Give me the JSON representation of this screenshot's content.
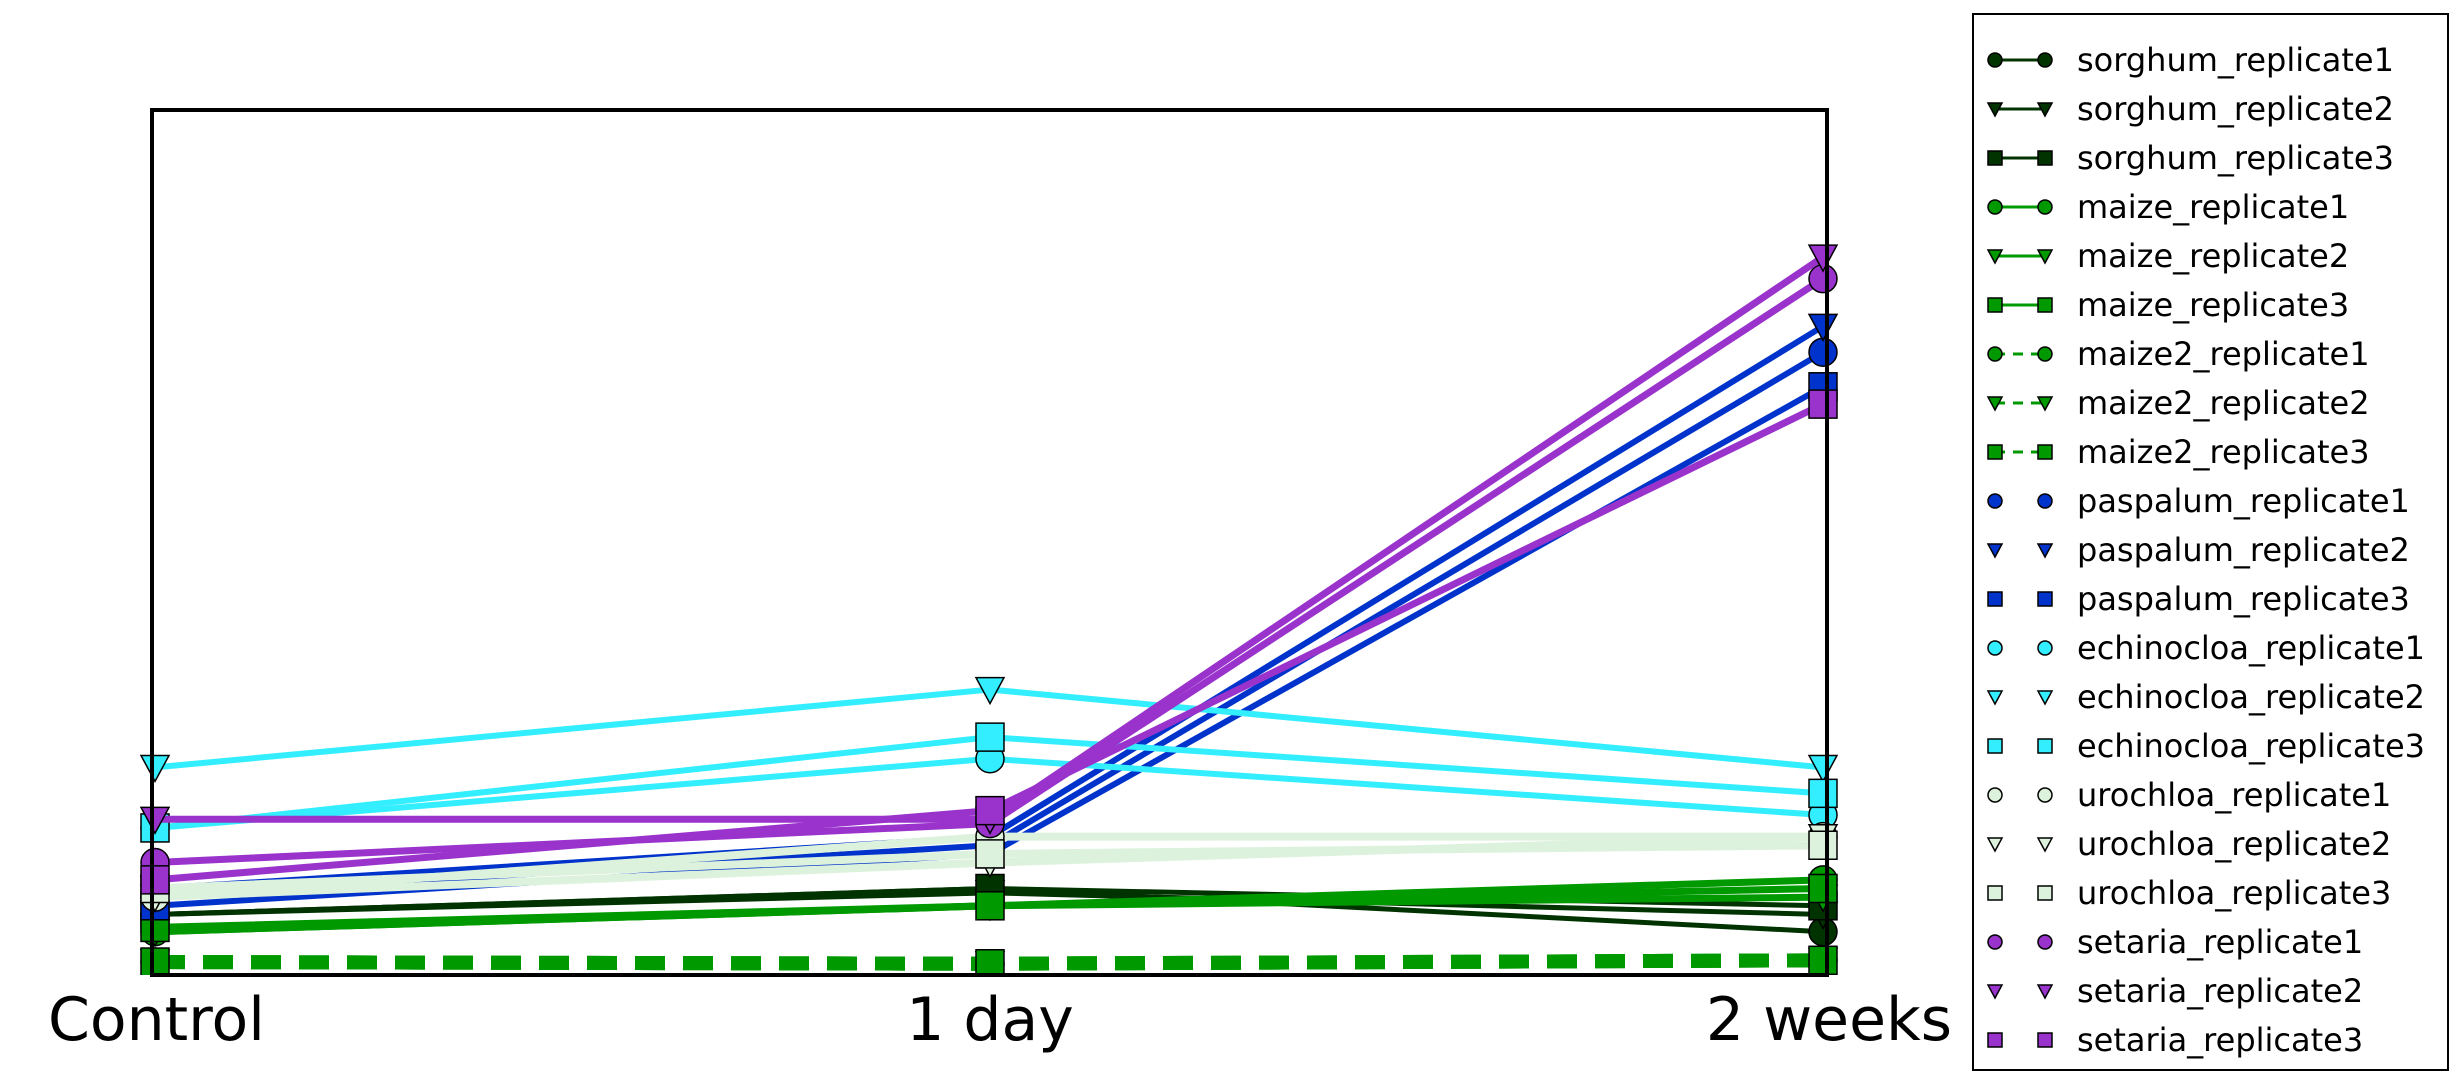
{
  "chart_data": {
    "type": "line",
    "title": "",
    "xlabel": "",
    "ylabel": "",
    "categories": [
      "Control",
      "1 day",
      "2 weeks"
    ],
    "ylim": [
      0,
      100
    ],
    "grid": false,
    "legend_placement": "right, outside plot",
    "series": [
      {
        "name": "sorghum_replicate1",
        "color": "#003300",
        "marker": "circle",
        "linestyle": "solid",
        "linewidth": 5,
        "values": [
          7,
          10,
          5
        ]
      },
      {
        "name": "sorghum_replicate2",
        "color": "#003300",
        "marker": "triangle-down",
        "linestyle": "solid",
        "linewidth": 5,
        "values": [
          7,
          9.5,
          7
        ]
      },
      {
        "name": "sorghum_replicate3",
        "color": "#003300",
        "marker": "square",
        "linestyle": "solid",
        "linewidth": 5,
        "values": [
          7,
          10,
          8
        ]
      },
      {
        "name": "maize_replicate1",
        "color": "#009900",
        "marker": "circle",
        "linestyle": "solid",
        "linewidth": 7,
        "values": [
          5,
          8,
          11
        ]
      },
      {
        "name": "maize_replicate2",
        "color": "#009900",
        "marker": "triangle-down",
        "linestyle": "solid",
        "linewidth": 7,
        "values": [
          5,
          8,
          9
        ]
      },
      {
        "name": "maize_replicate3",
        "color": "#009900",
        "marker": "square",
        "linestyle": "solid",
        "linewidth": 7,
        "values": [
          5.5,
          8,
          10
        ]
      },
      {
        "name": "maize2_replicate1",
        "color": "#009900",
        "marker": "circle",
        "linestyle": "dashed",
        "linewidth": 14,
        "values": [
          1.5,
          1.3,
          1.7
        ]
      },
      {
        "name": "maize2_replicate2",
        "color": "#009900",
        "marker": "triangle-down",
        "linestyle": "dashed",
        "linewidth": 14,
        "values": [
          1.5,
          1.3,
          1.7
        ]
      },
      {
        "name": "maize2_replicate3",
        "color": "#009900",
        "marker": "square",
        "linestyle": "dashed",
        "linewidth": 14,
        "values": [
          1.5,
          1.3,
          1.7
        ]
      },
      {
        "name": "paspalum_replicate1",
        "color": "#0033cc",
        "marker": "circle",
        "linestyle": "solid",
        "linewidth": 6,
        "values": [
          9,
          15,
          72
        ]
      },
      {
        "name": "paspalum_replicate2",
        "color": "#0033cc",
        "marker": "triangle-down",
        "linestyle": "solid",
        "linewidth": 6,
        "values": [
          10,
          16,
          75
        ]
      },
      {
        "name": "paspalum_replicate3",
        "color": "#0033cc",
        "marker": "square",
        "linestyle": "solid",
        "linewidth": 6,
        "values": [
          8,
          14,
          68
        ]
      },
      {
        "name": "echinocloa_replicate1",
        "color": "#33eeff",
        "marker": "circle",
        "linestyle": "solid",
        "linewidth": 6,
        "values": [
          17,
          25,
          18.5
        ]
      },
      {
        "name": "echinocloa_replicate2",
        "color": "#33eeff",
        "marker": "triangle-down",
        "linestyle": "solid",
        "linewidth": 6,
        "values": [
          24,
          33,
          24
        ]
      },
      {
        "name": "echinocloa_replicate3",
        "color": "#33eeff",
        "marker": "square",
        "linestyle": "solid",
        "linewidth": 6,
        "values": [
          17,
          27.5,
          21
        ]
      },
      {
        "name": "urochloa_replicate1",
        "color": "#ddf2dd",
        "marker": "circle",
        "linestyle": "solid",
        "linewidth": 8,
        "values": [
          9,
          16,
          16
        ]
      },
      {
        "name": "urochloa_replicate2",
        "color": "#ddf2dd",
        "marker": "triangle-down",
        "linestyle": "solid",
        "linewidth": 8,
        "values": [
          9,
          13,
          16
        ]
      },
      {
        "name": "urochloa_replicate3",
        "color": "#ddf2dd",
        "marker": "square",
        "linestyle": "solid",
        "linewidth": 8,
        "values": [
          10,
          14,
          15
        ]
      },
      {
        "name": "setaria_replicate1",
        "color": "#9933cc",
        "marker": "circle",
        "linestyle": "solid",
        "linewidth": 7,
        "values": [
          13,
          17.5,
          80.5
        ]
      },
      {
        "name": "setaria_replicate2",
        "color": "#9933cc",
        "marker": "triangle-down",
        "linestyle": "solid",
        "linewidth": 7,
        "values": [
          18,
          18,
          83
        ]
      },
      {
        "name": "setaria_replicate3",
        "color": "#9933cc",
        "marker": "square",
        "linestyle": "solid",
        "linewidth": 7,
        "values": [
          11,
          19,
          66
        ]
      }
    ]
  }
}
